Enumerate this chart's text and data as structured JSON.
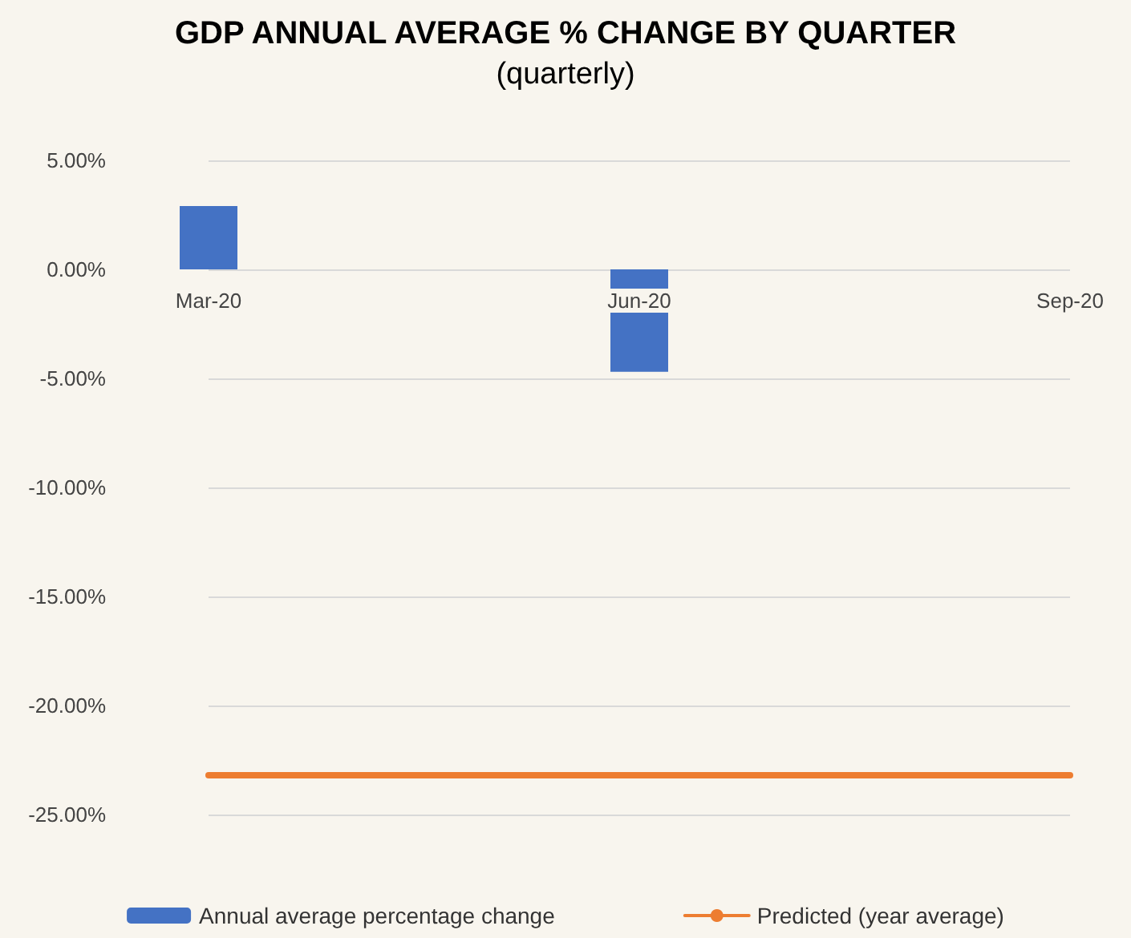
{
  "chart_data": {
    "type": "bar",
    "title": "GDP ANNUAL AVERAGE % CHANGE BY QUARTER",
    "subtitle": "(quarterly)",
    "categories": [
      "Mar-20",
      "Jun-20",
      "Sep-20"
    ],
    "series": [
      {
        "name": "Annual average percentage change",
        "color": "#4472c4",
        "values": [
          2.9,
          -4.7,
          null
        ]
      },
      {
        "name": "Predicted (year average)",
        "type": "line",
        "color": "#ed7d31",
        "values": [
          -23.2,
          -23.2,
          -23.2
        ]
      }
    ],
    "ylim": [
      -25,
      5
    ],
    "yticks": [
      {
        "value": 5,
        "label": "5.00%"
      },
      {
        "value": 0,
        "label": "0.00%"
      },
      {
        "value": -5,
        "label": "-5.00%"
      },
      {
        "value": -10,
        "label": "-10.00%"
      },
      {
        "value": -15,
        "label": "-15.00%"
      },
      {
        "value": -20,
        "label": "-20.00%"
      },
      {
        "value": -25,
        "label": "-25.00%"
      }
    ],
    "grid": "y",
    "legend": "bottom",
    "marker": "none",
    "line_style": "solid"
  }
}
